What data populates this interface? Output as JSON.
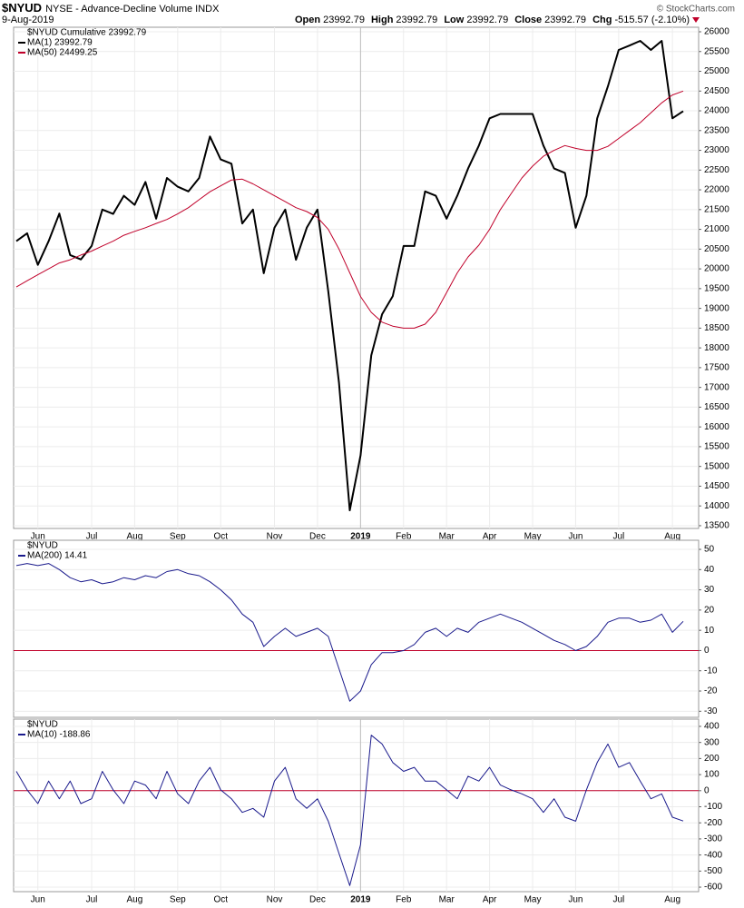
{
  "header": {
    "symbol": "$NYUD",
    "name": "NYSE - Advance-Decline Volume INDX",
    "date": "9-Aug-2019",
    "quote": [
      {
        "label": "Open",
        "value": "23992.79"
      },
      {
        "label": "High",
        "value": "23992.79"
      },
      {
        "label": "Low",
        "value": "23992.79"
      },
      {
        "label": "Close",
        "value": "23992.79"
      },
      {
        "label": "Chg",
        "value": "-515.57 (-2.10%)"
      }
    ],
    "credit": "© StockCharts.com"
  },
  "chart_data": [
    {
      "type": "line",
      "legend_header": "$NYUD Cumulative 23992.79",
      "categories": [
        null,
        null,
        "Jun",
        null,
        null,
        null,
        null,
        "Jul",
        null,
        null,
        null,
        "Aug",
        null,
        null,
        null,
        "Sep",
        null,
        null,
        null,
        "Oct",
        null,
        null,
        null,
        null,
        "Nov",
        null,
        null,
        null,
        "Dec",
        null,
        null,
        null,
        "2019",
        null,
        null,
        null,
        "Feb",
        null,
        null,
        null,
        "Mar",
        null,
        null,
        null,
        "Apr",
        null,
        null,
        null,
        "May",
        null,
        null,
        null,
        "Jun",
        null,
        null,
        null,
        "Jul",
        null,
        null,
        null,
        null,
        "Aug",
        null
      ],
      "series": [
        {
          "name": "MA(1) 23992.79",
          "color": "#000000",
          "width": 2,
          "values": [
            20700,
            20900,
            20100,
            20700,
            21400,
            20350,
            20240,
            20580,
            21500,
            21390,
            21850,
            21620,
            22200,
            21270,
            22300,
            22080,
            21960,
            22300,
            23350,
            22770,
            22660,
            21150,
            21500,
            19890,
            21040,
            21500,
            20230,
            21040,
            21500,
            19430,
            17120,
            13890,
            15280,
            17810,
            18850,
            19310,
            20580,
            20580,
            21960,
            21850,
            21270,
            21850,
            22540,
            23120,
            23810,
            23920,
            23920,
            23920,
            23920,
            23120,
            22540,
            22430,
            21040,
            21850,
            23810,
            24620,
            25540,
            25650,
            25770,
            25540,
            25770,
            23810,
            23992.79
          ]
        },
        {
          "name": "MA(50) 24499.25",
          "color": "#c0002a",
          "width": 1,
          "values": [
            19540,
            19700,
            19850,
            20000,
            20150,
            20230,
            20350,
            20450,
            20580,
            20700,
            20850,
            20950,
            21040,
            21150,
            21250,
            21390,
            21550,
            21750,
            21950,
            22100,
            22250,
            22270,
            22150,
            22000,
            21850,
            21700,
            21550,
            21450,
            21300,
            21000,
            20500,
            19900,
            19300,
            18900,
            18650,
            18550,
            18500,
            18500,
            18600,
            18900,
            19400,
            19900,
            20300,
            20600,
            21000,
            21500,
            21900,
            22300,
            22600,
            22850,
            23000,
            23120,
            23050,
            23000,
            23000,
            23100,
            23300,
            23500,
            23700,
            23950,
            24200,
            24400,
            24499.25
          ]
        }
      ],
      "ylim": [
        13430,
        26115
      ],
      "yticks": [
        13500,
        14000,
        14500,
        15000,
        15500,
        16000,
        16500,
        17000,
        17500,
        18000,
        18500,
        19000,
        19500,
        20000,
        20500,
        21000,
        21500,
        22000,
        22500,
        23000,
        23500,
        24000,
        24500,
        25000,
        25500,
        26000
      ],
      "grid": true
    },
    {
      "type": "line",
      "legend_header": "$NYUD",
      "series": [
        {
          "name": "MA(200) 14.41",
          "color": "#1a1a8c",
          "width": 1,
          "values": [
            42,
            43,
            42,
            43,
            40,
            36,
            34,
            35,
            33,
            34,
            36,
            35,
            37,
            36,
            39,
            40,
            38,
            37,
            34,
            30,
            25,
            18,
            14,
            2,
            7,
            11,
            7,
            9,
            11,
            7,
            -9,
            -25,
            -20,
            -7,
            -1,
            -1,
            0,
            3,
            9,
            11,
            7,
            11,
            9,
            14,
            16,
            18,
            16,
            14,
            11,
            8,
            5,
            3,
            0,
            2,
            7,
            14,
            16,
            16,
            14,
            15,
            18,
            9,
            14.41
          ]
        }
      ],
      "ylim": [
        -33,
        54.5
      ],
      "yticks": [
        -30,
        -20,
        -10,
        0,
        10,
        20,
        30,
        40,
        50
      ],
      "hline": 0,
      "hline_color": "#c0002a",
      "grid": true
    },
    {
      "type": "line",
      "legend_header": "$NYUD",
      "categories": [
        null,
        null,
        "Jun",
        null,
        null,
        null,
        null,
        "Jul",
        null,
        null,
        null,
        "Aug",
        null,
        null,
        null,
        "Sep",
        null,
        null,
        null,
        "Oct",
        null,
        null,
        null,
        null,
        "Nov",
        null,
        null,
        null,
        "Dec",
        null,
        null,
        null,
        "2019",
        null,
        null,
        null,
        "Feb",
        null,
        null,
        null,
        "Mar",
        null,
        null,
        null,
        "Apr",
        null,
        null,
        null,
        "May",
        null,
        null,
        null,
        "Jun",
        null,
        null,
        null,
        "Jul",
        null,
        null,
        null,
        null,
        "Aug",
        null
      ],
      "series": [
        {
          "name": "MA(10) -188.86",
          "color": "#1a1a8c",
          "width": 1,
          "values": [
            120,
            5,
            -80,
            60,
            -50,
            60,
            -80,
            -50,
            120,
            5,
            -80,
            60,
            35,
            -50,
            120,
            -20,
            -80,
            60,
            145,
            5,
            -50,
            -135,
            -110,
            -165,
            60,
            145,
            -50,
            -110,
            -50,
            -190,
            -390,
            -590,
            -335,
            345,
            290,
            175,
            120,
            145,
            60,
            60,
            5,
            -50,
            90,
            60,
            145,
            35,
            5,
            -20,
            -50,
            -135,
            -50,
            -165,
            -190,
            5,
            175,
            290,
            145,
            175,
            60,
            -50,
            -20,
            -165,
            -188.86
          ]
        }
      ],
      "ylim": [
        -628,
        445
      ],
      "yticks": [
        -600,
        -500,
        -400,
        -300,
        -200,
        -100,
        0,
        100,
        200,
        300,
        400
      ],
      "hline": 0,
      "hline_color": "#c0002a",
      "grid": true
    }
  ]
}
